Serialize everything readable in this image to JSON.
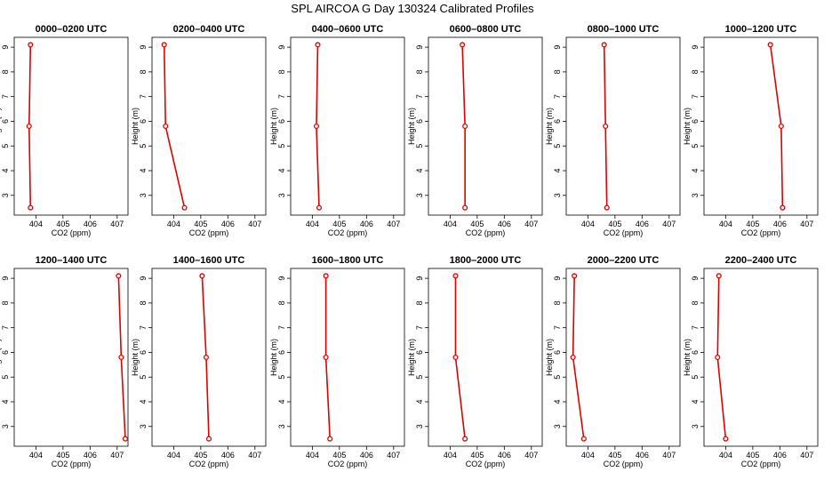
{
  "title": "SPL AIRCOA G  Day 130324  Calibrated Profiles",
  "colors": {
    "line": "#e00000",
    "point_fill": "#ffffff",
    "axis": "#000000"
  },
  "chart_data": [
    {
      "type": "line",
      "title": "0000–0200 UTC",
      "xlabel": "CO2 (ppm)",
      "ylabel": "Height (m)",
      "xlim": [
        403.2,
        407.4
      ],
      "ylim": [
        2.2,
        9.4
      ],
      "xticks": [
        404,
        405,
        406,
        407
      ],
      "yticks": [
        3,
        4,
        5,
        6,
        7,
        8,
        9
      ],
      "series": [
        {
          "x": [
            403.8,
            403.75,
            403.8
          ],
          "y": [
            9.1,
            5.8,
            2.5
          ]
        }
      ]
    },
    {
      "type": "line",
      "title": "0200–0400 UTC",
      "xlabel": "CO2 (ppm)",
      "ylabel": "Height (m)",
      "xlim": [
        403.2,
        407.4
      ],
      "ylim": [
        2.2,
        9.4
      ],
      "xticks": [
        404,
        405,
        406,
        407
      ],
      "yticks": [
        3,
        4,
        5,
        6,
        7,
        8,
        9
      ],
      "series": [
        {
          "x": [
            403.65,
            403.7,
            404.4
          ],
          "y": [
            9.1,
            5.8,
            2.5
          ]
        }
      ]
    },
    {
      "type": "line",
      "title": "0400–0600 UTC",
      "xlabel": "CO2 (ppm)",
      "ylabel": "Height (m)",
      "xlim": [
        403.2,
        407.4
      ],
      "ylim": [
        2.2,
        9.4
      ],
      "xticks": [
        404,
        405,
        406,
        407
      ],
      "yticks": [
        3,
        4,
        5,
        6,
        7,
        8,
        9
      ],
      "series": [
        {
          "x": [
            404.2,
            404.15,
            404.25
          ],
          "y": [
            9.1,
            5.8,
            2.5
          ]
        }
      ]
    },
    {
      "type": "line",
      "title": "0600–0800 UTC",
      "xlabel": "CO2 (ppm)",
      "ylabel": "Height (m)",
      "xlim": [
        403.2,
        407.4
      ],
      "ylim": [
        2.2,
        9.4
      ],
      "xticks": [
        404,
        405,
        406,
        407
      ],
      "yticks": [
        3,
        4,
        5,
        6,
        7,
        8,
        9
      ],
      "series": [
        {
          "x": [
            404.45,
            404.55,
            404.55
          ],
          "y": [
            9.1,
            5.8,
            2.5
          ]
        }
      ]
    },
    {
      "type": "line",
      "title": "0800–1000 UTC",
      "xlabel": "CO2 (ppm)",
      "ylabel": "Height (m)",
      "xlim": [
        403.2,
        407.4
      ],
      "ylim": [
        2.2,
        9.4
      ],
      "xticks": [
        404,
        405,
        406,
        407
      ],
      "yticks": [
        3,
        4,
        5,
        6,
        7,
        8,
        9
      ],
      "series": [
        {
          "x": [
            404.6,
            404.65,
            404.7
          ],
          "y": [
            9.1,
            5.8,
            2.5
          ]
        }
      ]
    },
    {
      "type": "line",
      "title": "1000–1200 UTC",
      "xlabel": "CO2 (ppm)",
      "ylabel": "Height (m)",
      "xlim": [
        403.2,
        407.4
      ],
      "ylim": [
        2.2,
        9.4
      ],
      "xticks": [
        404,
        405,
        406,
        407
      ],
      "yticks": [
        3,
        4,
        5,
        6,
        7,
        8,
        9
      ],
      "series": [
        {
          "x": [
            405.65,
            406.05,
            406.1
          ],
          "y": [
            9.1,
            5.8,
            2.5
          ]
        }
      ]
    },
    {
      "type": "line",
      "title": "1200–1400 UTC",
      "xlabel": "CO2 (ppm)",
      "ylabel": "Height (m)",
      "xlim": [
        403.2,
        407.4
      ],
      "ylim": [
        2.2,
        9.4
      ],
      "xticks": [
        404,
        405,
        406,
        407
      ],
      "yticks": [
        3,
        4,
        5,
        6,
        7,
        8,
        9
      ],
      "series": [
        {
          "x": [
            407.05,
            407.15,
            407.3
          ],
          "y": [
            9.1,
            5.8,
            2.5
          ]
        }
      ]
    },
    {
      "type": "line",
      "title": "1400–1600 UTC",
      "xlabel": "CO2 (ppm)",
      "ylabel": "Height (m)",
      "xlim": [
        403.2,
        407.4
      ],
      "ylim": [
        2.2,
        9.4
      ],
      "xticks": [
        404,
        405,
        406,
        407
      ],
      "yticks": [
        3,
        4,
        5,
        6,
        7,
        8,
        9
      ],
      "series": [
        {
          "x": [
            405.05,
            405.2,
            405.3
          ],
          "y": [
            9.1,
            5.8,
            2.5
          ]
        }
      ]
    },
    {
      "type": "line",
      "title": "1600–1800 UTC",
      "xlabel": "CO2 (ppm)",
      "ylabel": "Height (m)",
      "xlim": [
        403.2,
        407.4
      ],
      "ylim": [
        2.2,
        9.4
      ],
      "xticks": [
        404,
        405,
        406,
        407
      ],
      "yticks": [
        3,
        4,
        5,
        6,
        7,
        8,
        9
      ],
      "series": [
        {
          "x": [
            404.5,
            404.5,
            404.65
          ],
          "y": [
            9.1,
            5.8,
            2.5
          ]
        }
      ]
    },
    {
      "type": "line",
      "title": "1800–2000 UTC",
      "xlabel": "CO2 (ppm)",
      "ylabel": "Height (m)",
      "xlim": [
        403.2,
        407.4
      ],
      "ylim": [
        2.2,
        9.4
      ],
      "xticks": [
        404,
        405,
        406,
        407
      ],
      "yticks": [
        3,
        4,
        5,
        6,
        7,
        8,
        9
      ],
      "series": [
        {
          "x": [
            404.2,
            404.2,
            404.55
          ],
          "y": [
            9.1,
            5.8,
            2.5
          ]
        }
      ]
    },
    {
      "type": "line",
      "title": "2000–2200 UTC",
      "xlabel": "CO2 (ppm)",
      "ylabel": "Height (m)",
      "xlim": [
        403.2,
        407.4
      ],
      "ylim": [
        2.2,
        9.4
      ],
      "xticks": [
        404,
        405,
        406,
        407
      ],
      "yticks": [
        3,
        4,
        5,
        6,
        7,
        8,
        9
      ],
      "series": [
        {
          "x": [
            403.5,
            403.45,
            403.85
          ],
          "y": [
            9.1,
            5.8,
            2.5
          ]
        }
      ]
    },
    {
      "type": "line",
      "title": "2200–2400 UTC",
      "xlabel": "CO2 (ppm)",
      "ylabel": "Height (m)",
      "xlim": [
        403.2,
        407.4
      ],
      "ylim": [
        2.2,
        9.4
      ],
      "xticks": [
        404,
        405,
        406,
        407
      ],
      "yticks": [
        3,
        4,
        5,
        6,
        7,
        8,
        9
      ],
      "series": [
        {
          "x": [
            403.75,
            403.7,
            404.0
          ],
          "y": [
            9.1,
            5.8,
            2.5
          ]
        }
      ]
    }
  ]
}
